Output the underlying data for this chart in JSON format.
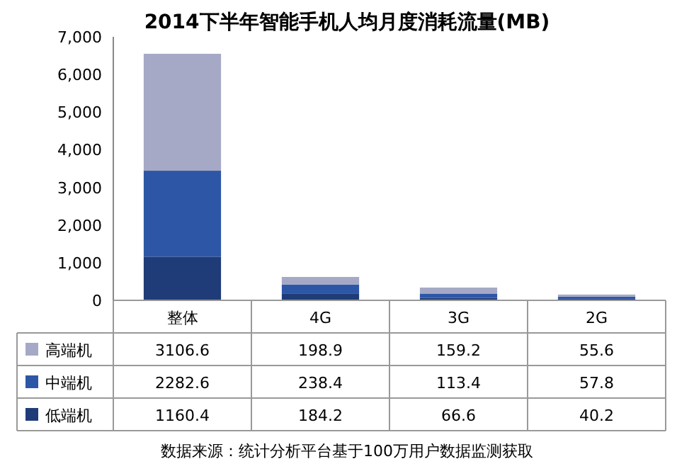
{
  "chart_data": {
    "type": "bar",
    "title": "2014下半年智能手机人均月度消耗流量(MB)",
    "categories": [
      "整体",
      "4G",
      "3G",
      "2G"
    ],
    "stacked": true,
    "series": [
      {
        "name": "低端机",
        "color": "#1f3c78",
        "values": [
          1160.4,
          184.2,
          66.6,
          40.2
        ]
      },
      {
        "name": "中端机",
        "color": "#2d57a6",
        "values": [
          2282.6,
          238.4,
          113.4,
          57.8
        ]
      },
      {
        "name": "高端机",
        "color": "#a5a9c6",
        "values": [
          3106.6,
          198.9,
          159.2,
          55.6
        ]
      }
    ],
    "ylim": [
      0,
      7000
    ],
    "yticks": [
      0,
      {
        "value": 1000,
        "label": "1,000"
      },
      {
        "value": 2000,
        "label": "2,000"
      },
      {
        "value": 3000,
        "label": "3,000"
      },
      {
        "value": 4000,
        "label": "4,000"
      },
      {
        "value": 5000,
        "label": "5,000"
      },
      {
        "value": 6000,
        "label": "6,000"
      },
      {
        "value": 7000,
        "label": "7,000"
      }
    ],
    "data_labels": true,
    "legend": "bottom",
    "annotations": [
      "数据来源：统计分析平台基于100万用户数据监测获取"
    ]
  }
}
